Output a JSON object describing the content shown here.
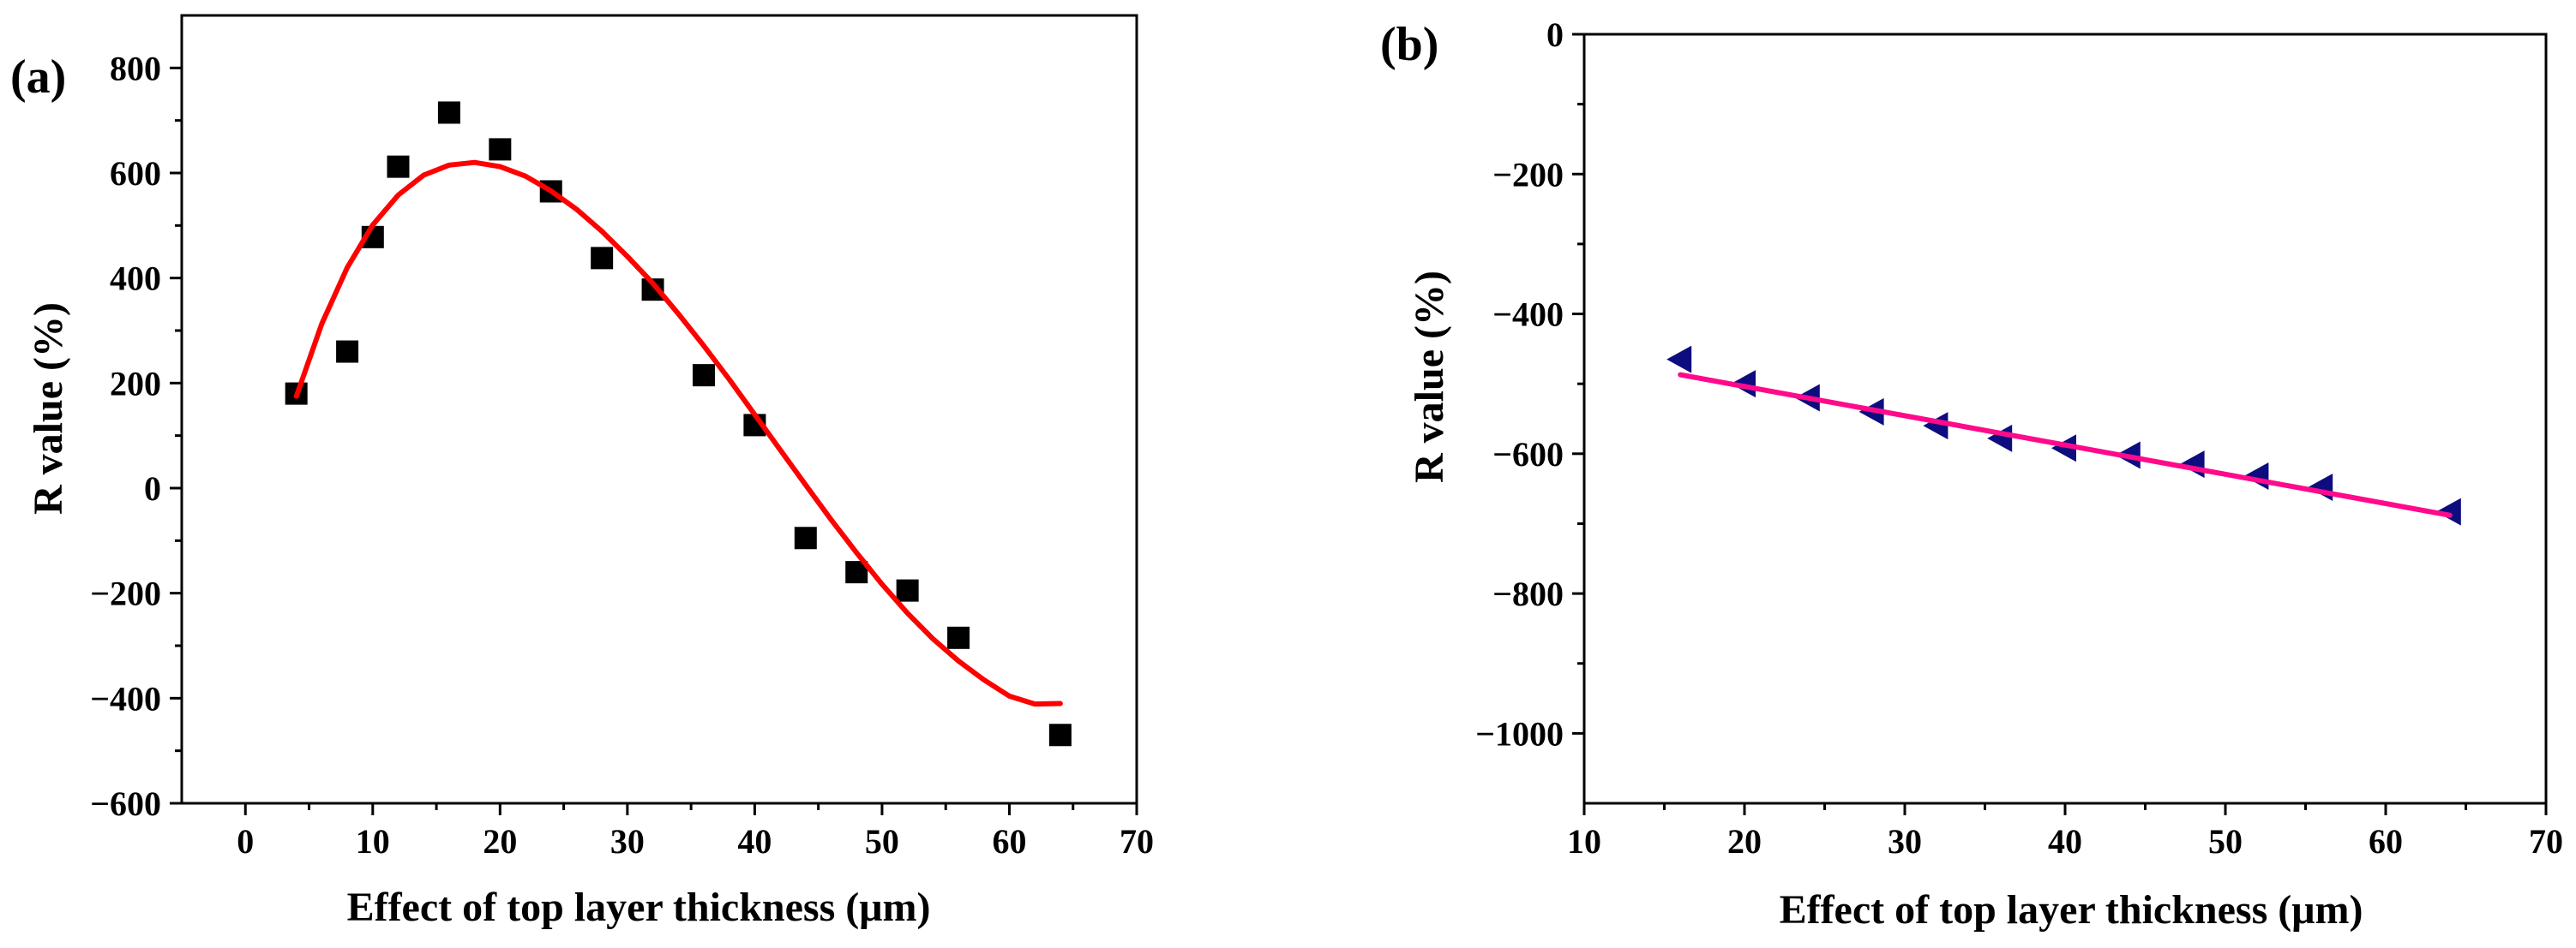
{
  "chart_data": [
    {
      "panel_label": "(a)",
      "type": "scatter",
      "xlabel": "Effect of top layer thickness (μm)",
      "ylabel": "R value (%)",
      "xlim": [
        -5,
        70
      ],
      "ylim": [
        -600,
        900
      ],
      "xticks": [
        0,
        10,
        20,
        30,
        40,
        50,
        60,
        70
      ],
      "yticks": [
        -600,
        -400,
        -200,
        0,
        200,
        400,
        600,
        800
      ],
      "xtick_labels": [
        "0",
        "10",
        "20",
        "30",
        "40",
        "50",
        "60",
        "70"
      ],
      "ytick_labels": [
        "−600",
        "−400",
        "−200",
        "0",
        "200",
        "400",
        "600",
        "800"
      ],
      "grid": false,
      "series": [
        {
          "name": "data",
          "kind": "scatter",
          "marker": "square",
          "color": "#000000",
          "x": [
            4,
            8,
            10,
            12,
            16,
            20,
            24,
            28,
            32,
            36,
            40,
            44,
            48,
            52,
            56,
            64
          ],
          "y": [
            180,
            260,
            478,
            612,
            715,
            645,
            565,
            438,
            378,
            215,
            120,
            -95,
            -160,
            -195,
            -285,
            -470
          ]
        },
        {
          "name": "fit",
          "kind": "line",
          "color": "#ff0000",
          "x": [
            4,
            6,
            8,
            10,
            12,
            14,
            16,
            18,
            20,
            22,
            24,
            26,
            28,
            30,
            32,
            34,
            36,
            38,
            40,
            42,
            44,
            46,
            48,
            50,
            52,
            54,
            56,
            58,
            60,
            62,
            64
          ],
          "y": [
            175,
            313,
            420,
            501,
            558,
            596,
            615,
            620,
            612,
            594,
            566,
            531,
            489,
            441,
            390,
            332,
            271,
            207,
            140,
            73,
            6,
            -60,
            -123,
            -183,
            -238,
            -287,
            -329,
            -365,
            -396,
            -411,
            -410
          ]
        }
      ]
    },
    {
      "panel_label": "(b)",
      "type": "scatter",
      "xlabel": "Effect of top layer thickness (μm)",
      "ylabel": "R value (%)",
      "xlim": [
        10,
        70
      ],
      "ylim": [
        -1100,
        0
      ],
      "xticks": [
        10,
        20,
        30,
        40,
        50,
        60,
        70
      ],
      "yticks": [
        -1000,
        -800,
        -600,
        -400,
        -200,
        0
      ],
      "xtick_labels": [
        "10",
        "20",
        "30",
        "40",
        "50",
        "60",
        "70"
      ],
      "ytick_labels": [
        "−1000",
        "−800",
        "−600",
        "−400",
        "−200",
        "0"
      ],
      "grid": false,
      "series": [
        {
          "name": "data",
          "kind": "scatter",
          "marker": "triangle-left",
          "color": "#0d0d80",
          "x": [
            16,
            20,
            24,
            28,
            32,
            36,
            40,
            44,
            48,
            52,
            56,
            64
          ],
          "y": [
            -465,
            -500,
            -520,
            -540,
            -560,
            -578,
            -592,
            -602,
            -615,
            -632,
            -648,
            -683
          ]
        },
        {
          "name": "fit",
          "kind": "line",
          "color": "#ff0a8a",
          "x": [
            16,
            64
          ],
          "y": [
            -487,
            -688
          ]
        }
      ]
    }
  ]
}
